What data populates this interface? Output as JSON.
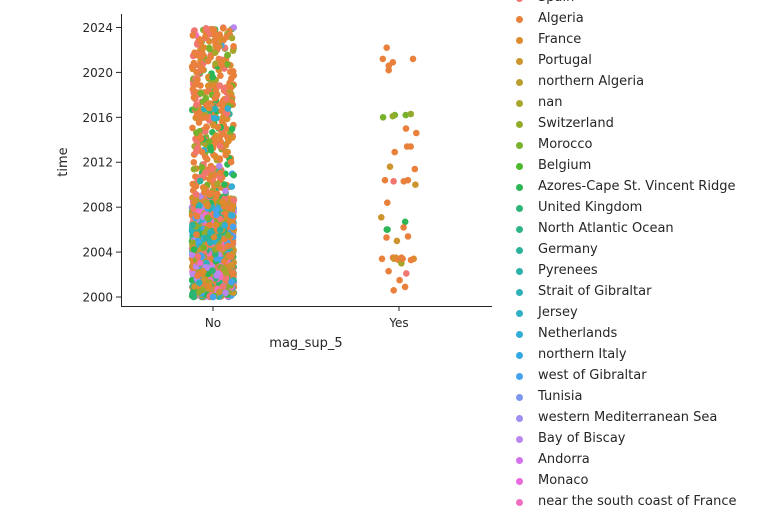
{
  "chart_data": {
    "type": "scatter",
    "xlabel": "mag_sup_5",
    "ylabel": "time",
    "categories": [
      "No",
      "Yes"
    ],
    "ylim": [
      1999.2,
      2025.2
    ],
    "yticks": [
      "2000",
      "2004",
      "2008",
      "2012",
      "2016",
      "2020",
      "2024"
    ],
    "legend_position": "right",
    "legend": [
      {
        "name": "Spain",
        "color": "#f0766f"
      },
      {
        "name": "Algeria",
        "color": "#e9803c"
      },
      {
        "name": "France",
        "color": "#dc8b2d"
      },
      {
        "name": "Portugal",
        "color": "#cc952d"
      },
      {
        "name": "northern Algeria",
        "color": "#bb9d2d"
      },
      {
        "name": "nan",
        "color": "#a8a52d"
      },
      {
        "name": "Switzerland",
        "color": "#93ab2d"
      },
      {
        "name": "Morocco",
        "color": "#78b22d"
      },
      {
        "name": "Belgium",
        "color": "#4bb82d"
      },
      {
        "name": "Azores-Cape St. Vincent Ridge",
        "color": "#2db654"
      },
      {
        "name": "United Kingdom",
        "color": "#2db575"
      },
      {
        "name": "North Atlantic Ocean",
        "color": "#2db48a"
      },
      {
        "name": "Germany",
        "color": "#2db39b"
      },
      {
        "name": "Pyrenees",
        "color": "#2db1aa"
      },
      {
        "name": "Strait of Gibraltar",
        "color": "#2eb0b8"
      },
      {
        "name": "Jersey",
        "color": "#30afc6"
      },
      {
        "name": "Netherlands",
        "color": "#32add5"
      },
      {
        "name": "northern Italy",
        "color": "#35a9e4"
      },
      {
        "name": "west of Gibraltar",
        "color": "#45a2f0"
      },
      {
        "name": "Tunisia",
        "color": "#7c97f0"
      },
      {
        "name": "western Mediterranean Sea",
        "color": "#9b8ff0"
      },
      {
        "name": "Bay of Biscay",
        "color": "#b887f0"
      },
      {
        "name": "Andorra",
        "color": "#d373ec"
      },
      {
        "name": "Monaco",
        "color": "#e76bdd"
      },
      {
        "name": "near the south coast of France",
        "color": "#f06ec2"
      }
    ],
    "series_yes": [
      {
        "y": 2022.2,
        "c": 1
      },
      {
        "y": 2021.2,
        "c": 1
      },
      {
        "y": 2021.2,
        "c": 1
      },
      {
        "y": 2020.9,
        "c": 1
      },
      {
        "y": 2020.6,
        "c": 1
      },
      {
        "y": 2020.2,
        "c": 1
      },
      {
        "y": 2016.2,
        "c": 7
      },
      {
        "y": 2016.3,
        "c": 6
      },
      {
        "y": 2016.2,
        "c": 7
      },
      {
        "y": 2016.1,
        "c": 6
      },
      {
        "y": 2016.0,
        "c": 7
      },
      {
        "y": 2015.0,
        "c": 1
      },
      {
        "y": 2014.6,
        "c": 1
      },
      {
        "y": 2013.4,
        "c": 1
      },
      {
        "y": 2013.4,
        "c": 1
      },
      {
        "y": 2012.9,
        "c": 1
      },
      {
        "y": 2011.6,
        "c": 3
      },
      {
        "y": 2011.4,
        "c": 1
      },
      {
        "y": 2010.4,
        "c": 1
      },
      {
        "y": 2010.4,
        "c": 1
      },
      {
        "y": 2010.3,
        "c": 0
      },
      {
        "y": 2010.3,
        "c": 1
      },
      {
        "y": 2010.0,
        "c": 3
      },
      {
        "y": 2008.4,
        "c": 1
      },
      {
        "y": 2007.1,
        "c": 3
      },
      {
        "y": 2006.7,
        "c": 9
      },
      {
        "y": 2006.2,
        "c": 1
      },
      {
        "y": 2006.0,
        "c": 9
      },
      {
        "y": 2006.0,
        "c": 9
      },
      {
        "y": 2005.4,
        "c": 1
      },
      {
        "y": 2005.3,
        "c": 1
      },
      {
        "y": 2005.0,
        "c": 3
      },
      {
        "y": 2003.5,
        "c": 1
      },
      {
        "y": 2003.4,
        "c": 2
      },
      {
        "y": 2003.5,
        "c": 1
      },
      {
        "y": 2003.4,
        "c": 3
      },
      {
        "y": 2003.3,
        "c": 1
      },
      {
        "y": 2003.5,
        "c": 2
      },
      {
        "y": 2003.4,
        "c": 1
      },
      {
        "y": 2003.3,
        "c": 1
      },
      {
        "y": 2003.0,
        "c": 5
      },
      {
        "y": 2003.4,
        "c": 1
      },
      {
        "y": 2002.3,
        "c": 1
      },
      {
        "y": 2002.1,
        "c": 0
      },
      {
        "y": 2001.5,
        "c": 1
      },
      {
        "y": 2000.9,
        "c": 1
      },
      {
        "y": 2000.6,
        "c": 1
      }
    ]
  }
}
